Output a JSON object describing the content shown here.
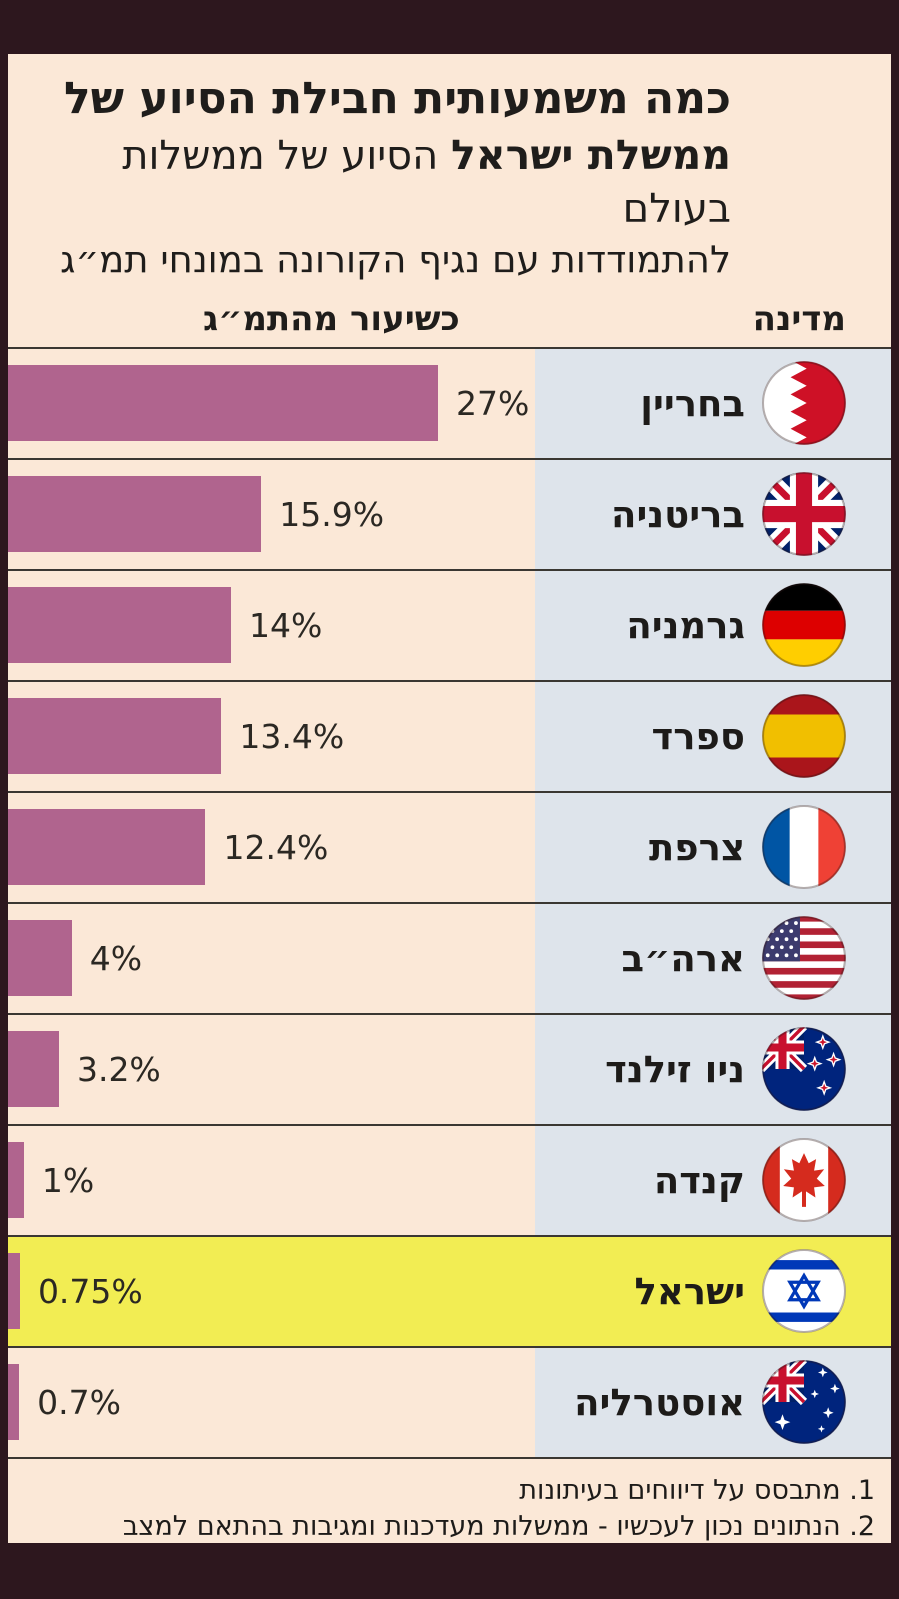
{
  "title": {
    "line1_bold": "כמה משמעותית חבילת הסיוע של",
    "line2_bold": "ממשלת ישראל",
    "line2_rest": " הסיוע של ממשלות בעולם",
    "line3": "להתמודדות עם נגיף הקורונה במונחי תמ״ג"
  },
  "headers": {
    "value_col": "כשיעור מהתמ״ג",
    "country_col": "מדינה"
  },
  "footnotes": {
    "note1": "1. מתבסס על דיווחים בעיתונות",
    "note2": "2. הנתונים נכון לעכשיו - ממשלות מעדכנות ומגיבות בהתאם למצב"
  },
  "colors": {
    "frame": "#2d171e",
    "panel": "#fbe8d7",
    "bar": "#b0648e",
    "country_column": "#dee4eb",
    "highlight_row": "#f2ed53",
    "separator": "#3a3732",
    "text": "#1f1d1b"
  },
  "chart_data": {
    "type": "bar",
    "orientation": "horizontal",
    "title": "כמה משמעותית חבילת הסיוע של ממשלת ישראל - הסיוע של ממשלות בעולם להתמודדות עם נגיף הקורונה במונחי תמ״ג",
    "xlabel": "כשיעור מהתמ״ג",
    "ylabel": "מדינה",
    "xlim": [
      0,
      27
    ],
    "grid": false,
    "legend": false,
    "categories": [
      "בחריין",
      "בריטניה",
      "גרמניה",
      "ספרד",
      "צרפת",
      "ארה״ב",
      "ניו זילנד",
      "קנדה",
      "ישראל",
      "אוסטרליה"
    ],
    "categories_en": [
      "Bahrain",
      "United Kingdom",
      "Germany",
      "Spain",
      "France",
      "USA",
      "New Zealand",
      "Canada",
      "Israel",
      "Australia"
    ],
    "values": [
      27,
      15.9,
      14,
      13.4,
      12.4,
      4,
      3.2,
      1,
      0.75,
      0.7
    ],
    "value_labels": [
      "27%",
      "15.9%",
      "14%",
      "13.4%",
      "12.4%",
      "4%",
      "3.2%",
      "1%",
      "0.75%",
      "0.7%"
    ],
    "highlighted_category": "ישראל"
  }
}
